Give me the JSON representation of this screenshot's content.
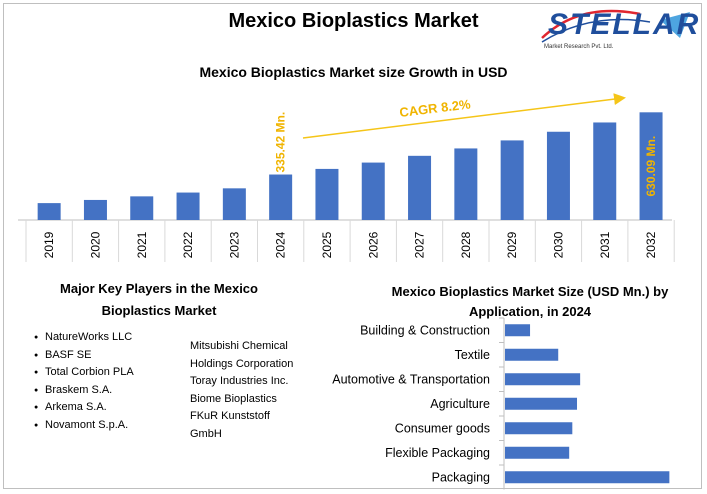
{
  "main_title": "Mexico Bioplastics Market",
  "logo": {
    "name": "STELLAR",
    "tagline": "Market Research Pvt. Ltd."
  },
  "colors": {
    "bar": "#4472c4",
    "accent": "#f5c518"
  },
  "chart_data": [
    {
      "type": "bar",
      "title": "Mexico Bioplastics Market size Growth in USD",
      "categories": [
        "2019",
        "2020",
        "2021",
        "2022",
        "2023",
        "2024",
        "2025",
        "2026",
        "2027",
        "2028",
        "2029",
        "2030",
        "2031",
        "2032"
      ],
      "values": [
        200,
        215,
        232,
        250,
        270,
        335.42,
        362,
        392,
        424,
        459,
        497,
        538,
        582,
        630.09
      ],
      "ylim": [
        120,
        660
      ],
      "data_labels": [
        {
          "category": "2024",
          "text": "335.42 Mn."
        },
        {
          "category": "2032",
          "text": "630.09 Mn."
        }
      ],
      "annotation": "CAGR 8.2%"
    },
    {
      "type": "bar",
      "orientation": "horizontal",
      "title": "Mexico Bioplastics Market Size (USD Mn.) by Application, in 2024",
      "categories": [
        "Building & Construction",
        "Textile",
        "Automotive & Transportation",
        "Agriculture",
        "Consumer goods",
        "Flexible Packaging",
        "Packaging"
      ],
      "values": [
        16,
        34,
        48,
        46,
        43,
        41,
        105
      ],
      "xlim": [
        0,
        110
      ]
    }
  ],
  "players": {
    "title_line1": "Major Key Players in the Mexico",
    "title_line2": "Bioplastics Market",
    "left": [
      "NatureWorks LLC",
      "BASF SE",
      "Total Corbion PLA",
      "Braskem S.A.",
      "Arkema S.A.",
      "Novamont S.p.A."
    ],
    "right": [
      "Mitsubishi Chemical Holdings Corporation",
      "Toray Industries Inc.",
      "Biome Bioplastics",
      "FKuR Kunststoff GmbH"
    ]
  }
}
